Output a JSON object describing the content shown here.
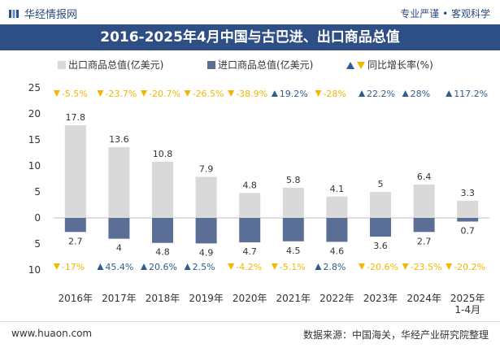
{
  "header": {
    "brand": "华经情报网",
    "tagline": "专业严谨 • 客观科学",
    "title": "2016-2025年4月中国与古巴进、出口商品总值"
  },
  "footer": {
    "site": "www.huaon.com",
    "source": "数据来源：中国海关，华经产业研究院整理"
  },
  "colors": {
    "export": "#d9d9d9",
    "import": "#5b6f96",
    "up": "#2e5d8e",
    "down": "#f2b800",
    "title_bg": "#2e4f86"
  },
  "chart_data": {
    "type": "bar",
    "categories": [
      "2016年",
      "2017年",
      "2018年",
      "2019年",
      "2020年",
      "2021年",
      "2022年",
      "2023年",
      "2024年",
      "2025年\n1-4月"
    ],
    "series": [
      {
        "name": "出口商品总值(亿美元)",
        "values": [
          17.8,
          13.6,
          10.8,
          7.9,
          4.8,
          5.8,
          4.1,
          5,
          6.4,
          3.3
        ]
      },
      {
        "name": "进口商品总值(亿美元)",
        "values": [
          2.7,
          4,
          4.8,
          4.9,
          4.7,
          4.5,
          4.6,
          3.6,
          2.7,
          0.7
        ]
      }
    ],
    "legend_growth": "同比增长率(%)",
    "export_growth": [
      "-5.5%",
      "-23.7%",
      "-20.7%",
      "-26.5%",
      "-38.9%",
      "19.2%",
      "-28%",
      "22.2%",
      "28%",
      "117.2%"
    ],
    "import_growth": [
      "-17%",
      "45.4%",
      "20.6%",
      "2.5%",
      "-4.2%",
      "-5.1%",
      "2.8%",
      "-20.6%",
      "-23.5%",
      "-20.2%"
    ],
    "y_ticks_up": [
      "25",
      "20",
      "15",
      "10",
      "5",
      "0"
    ],
    "y_ticks_down": [
      "5",
      "10"
    ],
    "ylim": [
      -10,
      25
    ],
    "legend_position": "top"
  }
}
